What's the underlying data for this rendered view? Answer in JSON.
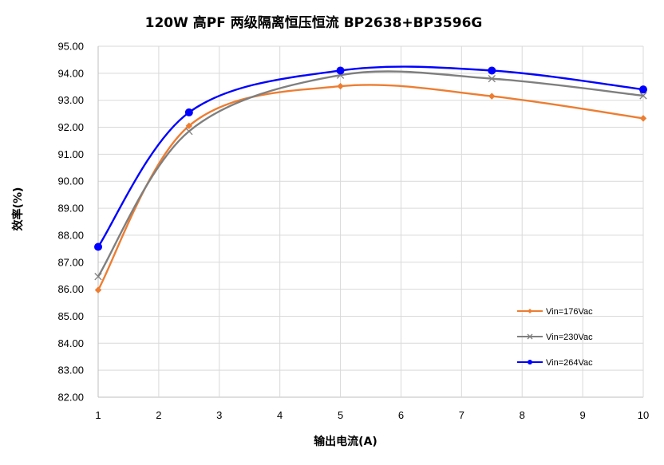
{
  "chart_data": {
    "type": "line",
    "title": "120W 高PF 两级隔离恒压恒流 BP2638+BP3596G",
    "xlabel": "输出电流(A)",
    "ylabel": "效率(%)",
    "xlim": [
      1,
      10
    ],
    "ylim": [
      82.0,
      95.0
    ],
    "x_ticks": [
      "1",
      "2",
      "3",
      "4",
      "5",
      "6",
      "7",
      "8",
      "9",
      "10"
    ],
    "y_ticks": [
      "82.00",
      "83.00",
      "84.00",
      "85.00",
      "86.00",
      "87.00",
      "88.00",
      "89.00",
      "90.00",
      "91.00",
      "92.00",
      "93.00",
      "94.00",
      "95.00"
    ],
    "grid": true,
    "legend_position": "lower-right",
    "series": [
      {
        "name": "Vin=176Vac",
        "color": "#ed7d31",
        "marker": "diamond",
        "x": [
          1,
          2.5,
          5,
          7.5,
          10
        ],
        "y": [
          85.97,
          92.05,
          93.52,
          93.15,
          92.33
        ]
      },
      {
        "name": "Vin=230Vac",
        "color": "#7f7f7f",
        "marker": "x",
        "x": [
          1,
          2.5,
          5,
          7.5,
          10
        ],
        "y": [
          86.47,
          91.85,
          93.93,
          93.8,
          93.17
        ]
      },
      {
        "name": "Vin=264Vac",
        "color": "#0000ff",
        "marker": "circle",
        "x": [
          1,
          2.5,
          5,
          7.5,
          10
        ],
        "y": [
          87.57,
          92.55,
          94.1,
          94.1,
          93.4
        ]
      }
    ]
  }
}
